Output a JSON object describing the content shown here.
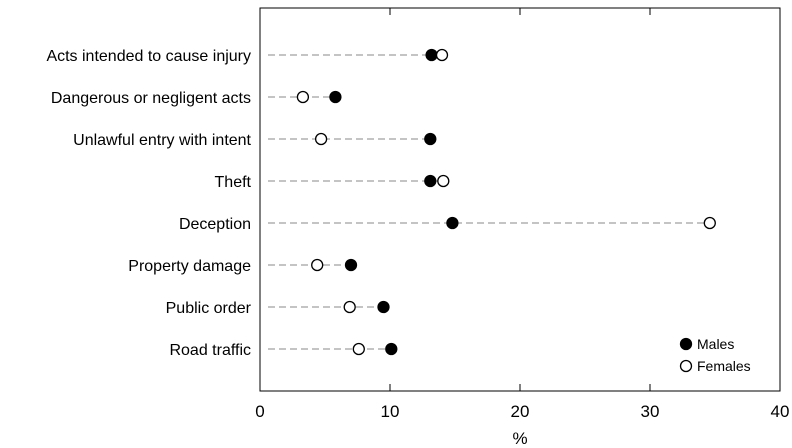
{
  "chart_data": {
    "type": "dot",
    "title": "",
    "xlabel": "%",
    "ylabel": "",
    "xlim": [
      0,
      40
    ],
    "xticks": [
      0,
      10,
      20,
      30,
      40
    ],
    "grid": false,
    "legend": "bottom-right",
    "categories": [
      "Acts intended to cause injury",
      "Dangerous or negligent acts",
      "Unlawful entry with intent",
      "Theft",
      "Deception",
      "Property damage",
      "Public order",
      "Road traffic"
    ],
    "series": [
      {
        "name": "Males",
        "marker": "filled-circle",
        "color": "#000000",
        "values": [
          13.2,
          5.8,
          13.1,
          13.1,
          14.8,
          7.0,
          9.5,
          10.1
        ]
      },
      {
        "name": "Females",
        "marker": "open-circle",
        "color": "#000000",
        "values": [
          14.0,
          3.3,
          4.7,
          14.1,
          34.6,
          4.4,
          6.9,
          7.6
        ]
      }
    ]
  }
}
